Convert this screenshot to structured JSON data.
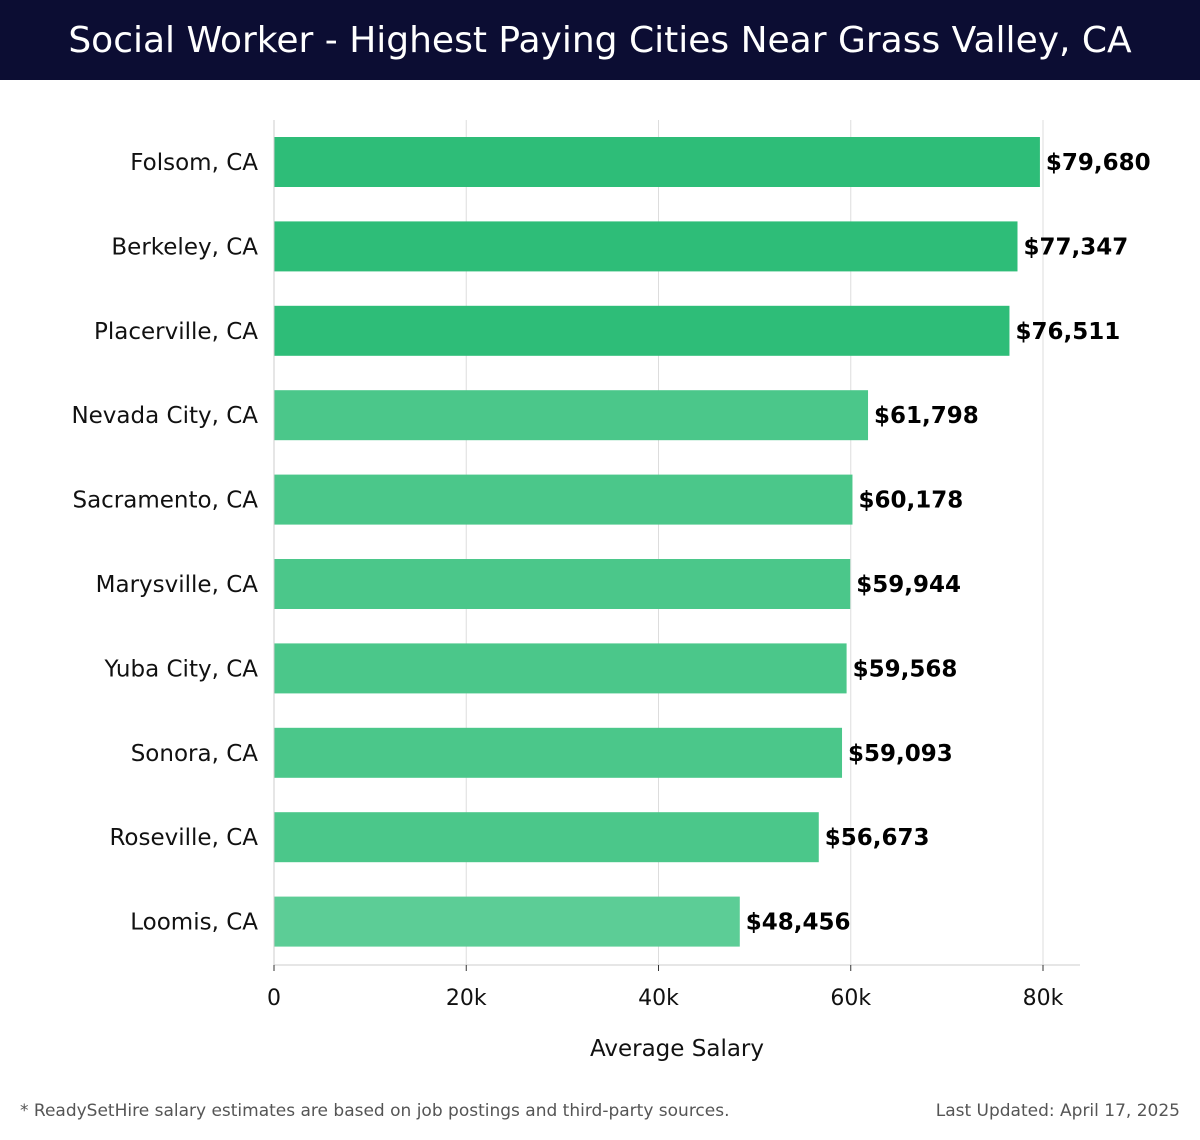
{
  "header": {
    "title": "Social Worker - Highest Paying Cities Near Grass Valley, CA"
  },
  "chart_data": {
    "type": "bar",
    "orientation": "horizontal",
    "title": "Social Worker - Highest Paying Cities Near Grass Valley, CA",
    "xlabel": "Average Salary",
    "ylabel": "",
    "xlim": [
      0,
      84000
    ],
    "xticks": [
      0,
      20000,
      40000,
      60000,
      80000
    ],
    "xtick_labels": [
      "0",
      "20k",
      "40k",
      "60k",
      "80k"
    ],
    "grid": "vertical",
    "categories": [
      "Folsom, CA",
      "Berkeley, CA",
      "Placerville, CA",
      "Nevada City, CA",
      "Sacramento, CA",
      "Marysville, CA",
      "Yuba City, CA",
      "Sonora, CA",
      "Roseville, CA",
      "Loomis, CA"
    ],
    "values": [
      79680,
      77347,
      76511,
      61798,
      60178,
      59944,
      59568,
      59093,
      56673,
      48456
    ],
    "value_labels": [
      "$79,680",
      "$77,347",
      "$76,511",
      "$61,798",
      "$60,178",
      "$59,944",
      "$59,568",
      "$59,093",
      "$56,673",
      "$48,456"
    ],
    "colors": {
      "top_bars": "#2ebd78",
      "other_bars": "#4bc78a",
      "last_bar": "#5ccd96",
      "grid": "#dddddd",
      "axis": "#cccccc",
      "text": "#111111"
    }
  },
  "footer": {
    "note": "* ReadySetHire salary estimates are based on job postings and third-party sources.",
    "updated": "Last Updated: April 17, 2025"
  }
}
